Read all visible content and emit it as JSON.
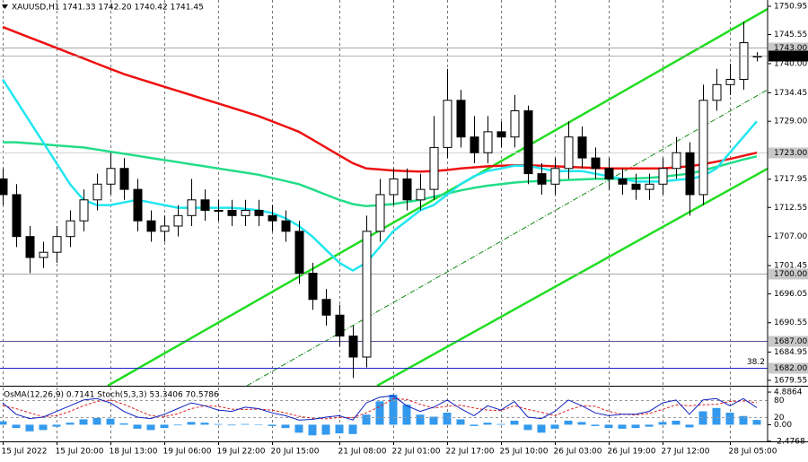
{
  "chart_data": {
    "type": "candlestick",
    "title": "XAUUSD,H1  1741.33 1742.20 1740.42 1741.45",
    "categories": [
      "15 Jul 2022",
      null,
      null,
      null,
      "15 Jul 20:00",
      null,
      null,
      null,
      "18 Jul 13:00",
      null,
      null,
      null,
      "19 Jul 06:00",
      null,
      null,
      null,
      "19 Jul 22:00",
      null,
      null,
      null,
      "20 Jul 15:00",
      null,
      null,
      null,
      null,
      "21 Jul 08:00",
      null,
      null,
      null,
      "22 Jul 01:00",
      null,
      null,
      null,
      "22 Jul 17:00",
      null,
      null,
      null,
      "25 Jul 10:00",
      null,
      null,
      null,
      "26 Jul 03:00",
      null,
      null,
      null,
      "26 Jul 19:00",
      null,
      null,
      null,
      "27 Jul 12:00",
      null,
      null,
      null,
      null,
      "28 Jul 05:00",
      null,
      null
    ],
    "open": [
      1718,
      1715,
      1707,
      1703,
      1704,
      1707,
      1710,
      1714,
      1717,
      1720,
      1716,
      1710,
      1708,
      1709,
      1711,
      1714,
      1712,
      1712,
      1711,
      1712,
      1711,
      1710,
      1708,
      1700,
      1695,
      1692,
      1688,
      1684,
      1708,
      1715,
      1718,
      1714,
      1716,
      1724,
      1733,
      1726,
      1723,
      1727,
      1726,
      1731,
      1719,
      1717,
      1720,
      1726,
      1722,
      1720,
      1718,
      1717,
      1716,
      1717,
      1720,
      1723,
      1715,
      1733,
      1736,
      1737,
      1741.33
    ],
    "high": [
      1720,
      1717,
      1709,
      1706,
      1709,
      1712,
      1716,
      1719,
      1723,
      1722,
      1718,
      1712,
      1711,
      1713,
      1718,
      1716,
      1714,
      1714,
      1714,
      1714,
      1713,
      1712,
      1710,
      1702,
      1697,
      1694,
      1690,
      1711,
      1718,
      1720,
      1720,
      1719,
      1730,
      1739,
      1735,
      1730,
      1730,
      1729,
      1734,
      1732,
      1721,
      1722,
      1729,
      1728,
      1724,
      1722,
      1720,
      1719,
      1719,
      1722,
      1726,
      1725,
      1736,
      1739,
      1740,
      1748,
      1742.2
    ],
    "low": [
      1713,
      1705,
      1700,
      1701,
      1702,
      1705,
      1708,
      1712,
      1715,
      1714,
      1708,
      1706,
      1706,
      1707,
      1709,
      1710,
      1710,
      1709,
      1709,
      1709,
      1708,
      1706,
      1698,
      1693,
      1690,
      1686,
      1680,
      1682,
      1706,
      1713,
      1712,
      1712,
      1714,
      1722,
      1724,
      1721,
      1721,
      1724,
      1724,
      1717,
      1715,
      1715,
      1718,
      1720,
      1718,
      1716,
      1715,
      1714,
      1714,
      1715,
      1718,
      1711,
      1713,
      1731,
      1734,
      1735,
      1740.42
    ],
    "close": [
      1715,
      1707,
      1703,
      1704,
      1707,
      1710,
      1714,
      1717,
      1720,
      1716,
      1710,
      1708,
      1709,
      1711,
      1714,
      1712,
      1712,
      1711,
      1712,
      1711,
      1710,
      1708,
      1700,
      1695,
      1692,
      1688,
      1684,
      1708,
      1715,
      1718,
      1714,
      1716,
      1724,
      1733,
      1726,
      1723,
      1727,
      1726,
      1731,
      1719,
      1717,
      1720,
      1726,
      1722,
      1720,
      1718,
      1717,
      1716,
      1717,
      1720,
      1723,
      1715,
      1733,
      1736,
      1737,
      1744,
      1741.45
    ],
    "up_color": "#ffffff",
    "down_color": "#000000",
    "series": [
      {
        "color": "#ee1111",
        "values": [
          1747,
          1746,
          1745,
          1744,
          1743,
          1742,
          1741,
          1740,
          1739,
          1738,
          1737.2,
          1736.4,
          1735.6,
          1734.8,
          1734,
          1733.2,
          1732.4,
          1731.6,
          1730.8,
          1730,
          1729,
          1728,
          1727,
          1725.5,
          1724,
          1722.5,
          1721,
          1720,
          1719.8,
          1719.6,
          1719.5,
          1719.4,
          1719.5,
          1719.7,
          1720,
          1720.2,
          1720.4,
          1720.5,
          1720.6,
          1720.6,
          1720.5,
          1720.4,
          1720.3,
          1720.2,
          1720.1,
          1720,
          1720,
          1720,
          1720,
          1720,
          1720.2,
          1720.4,
          1720.8,
          1721.3,
          1721.8,
          1722.4,
          1723
        ]
      },
      {
        "color": "#22dd88",
        "values": [
          1725,
          1725,
          1724.8,
          1724.6,
          1724.4,
          1724.2,
          1724,
          1723.6,
          1723.2,
          1722.8,
          1722.4,
          1722,
          1721.6,
          1721.2,
          1720.8,
          1720.4,
          1720,
          1719.6,
          1719.2,
          1718.8,
          1718.2,
          1717.6,
          1717,
          1716,
          1715,
          1714,
          1713.2,
          1712.8,
          1713,
          1713.2,
          1713.6,
          1714,
          1714.6,
          1715.2,
          1715.8,
          1716.3,
          1716.7,
          1717,
          1717.3,
          1717.5,
          1717.6,
          1717.7,
          1717.8,
          1717.9,
          1718,
          1718,
          1718,
          1718.1,
          1718.2,
          1718.4,
          1718.7,
          1719,
          1719.6,
          1720.3,
          1721,
          1721.7,
          1722.3
        ]
      },
      {
        "color": "#22e6f0",
        "values": [
          1737,
          1733,
          1729,
          1725,
          1721,
          1717,
          1714,
          1713,
          1713,
          1713.5,
          1714,
          1713.5,
          1713,
          1712.5,
          1712.5,
          1712.5,
          1712.5,
          1712.5,
          1712.3,
          1712,
          1711.5,
          1710.5,
          1709,
          1707,
          1704.5,
          1702,
          1700.5,
          1702,
          1705,
          1708,
          1710,
          1712,
          1713,
          1715,
          1717,
          1718.5,
          1719.5,
          1720,
          1720.5,
          1720.5,
          1720,
          1719.5,
          1719.5,
          1719.5,
          1719,
          1718.5,
          1718,
          1717.5,
          1717.5,
          1717.5,
          1717.8,
          1718,
          1718.5,
          1720,
          1723,
          1726,
          1729
        ]
      }
    ],
    "ylim": [
      1678.52,
      1752.15
    ],
    "yticks": [
      1750.95,
      1745.55,
      {
        "value": 1740,
        "label": "1740.00"
      },
      1734.45,
      {
        "value": 1729,
        "label": "1729.00"
      },
      1717.95,
      1712.55,
      {
        "value": 1707,
        "label": "1707.00"
      },
      1701.45,
      1696.05,
      1690.55,
      1684.95,
      1679.55
    ],
    "levels": [
      {
        "value": 1743,
        "label": "1743.00",
        "color": "#a8a8a8"
      },
      {
        "value": 1723,
        "label": "1723.00",
        "color": "#d0d0d0"
      },
      {
        "value": 1700,
        "label": "1700.00",
        "color": "#a8a8a8"
      },
      {
        "value": 1687,
        "label": "1687.00",
        "color": "#5050a0"
      },
      {
        "value": 1682,
        "label": "1682.00",
        "color": "#2020c8"
      }
    ],
    "fib_label": "38.2",
    "grid": true,
    "indicator": {
      "title": "OsMA(12,26,9) 0.7141 Stoch(5,3,3) 53.3406 70.5786",
      "osma": {
        "color": "#3399ee",
        "ylim": [
          -2.5,
          5.7
        ],
        "yticks": [
          4.8864,
          {
            "value": 0,
            "label": "0.00"
          },
          -2.4768
        ],
        "values": [
          0.5,
          -0.5,
          -1.0,
          -0.8,
          -0.3,
          0.3,
          0.8,
          1.0,
          0.9,
          0.2,
          -0.6,
          -0.8,
          -0.5,
          -0.1,
          0.4,
          0.3,
          0.1,
          -0.1,
          0.1,
          0.0,
          -0.2,
          -0.5,
          -1.2,
          -1.6,
          -1.5,
          -1.3,
          -1.4,
          1.5,
          3.5,
          4.5,
          3.0,
          1.5,
          1.2,
          1.8,
          0.8,
          -0.2,
          0.3,
          0.1,
          0.6,
          -0.8,
          -1.2,
          -0.6,
          0.6,
          0.4,
          -0.2,
          -0.5,
          -0.6,
          -0.5,
          -0.3,
          0.4,
          0.6,
          -0.4,
          2.0,
          2.5,
          1.8,
          1.3,
          0.7141
        ]
      },
      "stoch": {
        "ylim": [
          -65,
          127
        ],
        "yticks": [
          80,
          20
        ],
        "main": {
          "color": "#1020c0",
          "values": [
            70,
            30,
            15,
            20,
            40,
            60,
            80,
            85,
            70,
            40,
            20,
            15,
            30,
            50,
            70,
            60,
            45,
            40,
            55,
            50,
            35,
            25,
            10,
            12,
            20,
            25,
            10,
            70,
            90,
            95,
            60,
            40,
            55,
            80,
            50,
            25,
            60,
            45,
            75,
            20,
            15,
            40,
            80,
            60,
            35,
            25,
            30,
            30,
            40,
            70,
            80,
            30,
            80,
            85,
            60,
            85,
            53.3406
          ]
        },
        "signal": {
          "color": "#e02020",
          "values": [
            60,
            50,
            35,
            22,
            25,
            40,
            60,
            75,
            80,
            65,
            45,
            25,
            22,
            32,
            50,
            60,
            58,
            48,
            47,
            48,
            45,
            35,
            23,
            16,
            14,
            19,
            18,
            35,
            57,
            85,
            82,
            65,
            52,
            58,
            62,
            52,
            45,
            43,
            60,
            47,
            37,
            25,
            45,
            60,
            58,
            40,
            30,
            28,
            33,
            47,
            63,
            60,
            63,
            65,
            75,
            77,
            70.5786
          ]
        }
      }
    }
  }
}
